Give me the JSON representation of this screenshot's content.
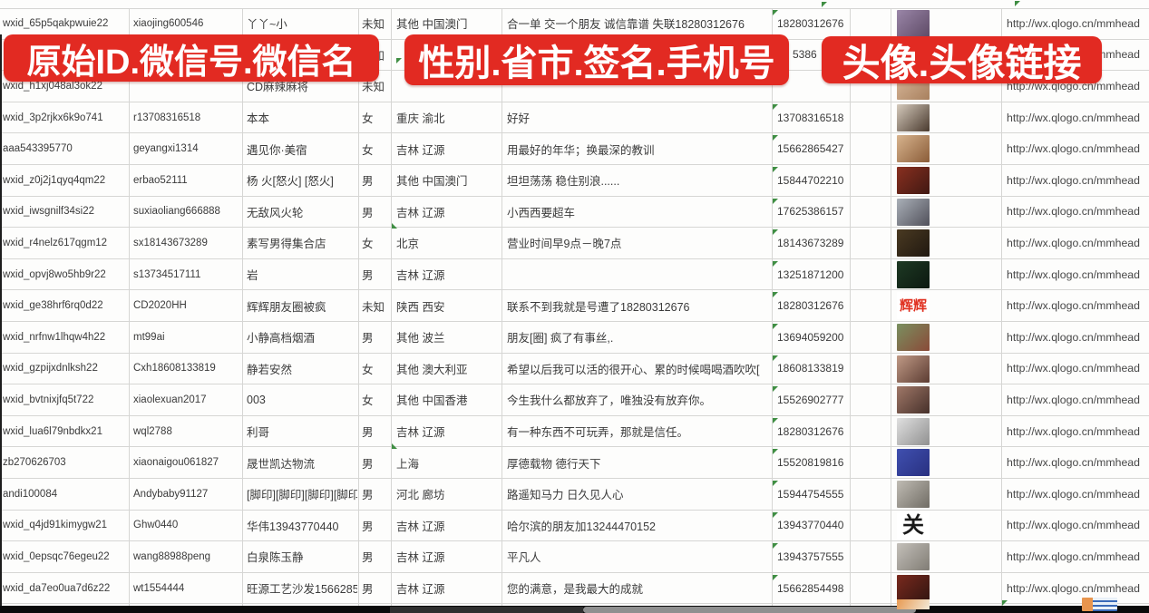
{
  "app": "spreadsheet-wechat-accounts",
  "accent_color": "#e22a22",
  "grid_color": "#d6d6d4",
  "banners": [
    {
      "text": "原始ID.微信号.微信名"
    },
    {
      "text": "性别.省市.签名.手机号"
    },
    {
      "text": "头像.头像链接"
    }
  ],
  "columns": [
    "原始ID",
    "微信号",
    "微信名",
    "性别",
    "省市",
    "签名",
    "手机号",
    "头像",
    "头像链接"
  ],
  "url": "http://wx.qlogo.cn/mmhead",
  "rows": [
    {
      "wxid": "wxid_65p5qakpwuie22",
      "account": "xiaojing600546",
      "nickname": "丫丫~小",
      "gender": "未知",
      "region": "其他 中国澳门",
      "signature": "合一单 交一个朋友 诚信靠谱 失联18280312676",
      "phone": "18280312676",
      "has_url": true,
      "avatar": {
        "desc": "selfie-woman-purple",
        "c1": "#9a86a8",
        "c2": "#5e4a66"
      }
    },
    {
      "wxid": "",
      "account": "",
      "nickname": "",
      "gender": "未知",
      "region": "",
      "signature": "",
      "phone": "5386",
      "phone_indent": 17,
      "has_url": true,
      "avatar": {
        "desc": "hidden-behind-banner",
        "c1": "#b8a698",
        "c2": "#8a7a6c"
      }
    },
    {
      "wxid": "wxid_h1xj048al3ok22",
      "account": "",
      "nickname": "CD麻辣麻将",
      "gender": "未知",
      "region": "",
      "signature": "",
      "phone": "",
      "has_url": true,
      "avatar": {
        "desc": "portrait-tan",
        "c1": "#d8b89a",
        "c2": "#a8805e"
      }
    },
    {
      "wxid": "wxid_3p2rjkx6k9o741",
      "account": "r13708316518",
      "nickname": "本本",
      "gender": "女",
      "region": "重庆 渝北",
      "signature": "好好",
      "phone": "13708316518",
      "has_url": true,
      "avatar": {
        "desc": "woman-dark-hair",
        "c1": "#d5cabc",
        "c2": "#4a3a2e"
      }
    },
    {
      "wxid": "aaa543395770",
      "account": "geyangxi1314",
      "nickname": "遇见你·美宿",
      "gender": "女",
      "region": "吉林 辽源",
      "signature": "用最好的年华；换最深的教训",
      "phone": "15662865427",
      "has_url": true,
      "avatar": {
        "desc": "branches-tan",
        "c1": "#d8b48e",
        "c2": "#8a5c38"
      }
    },
    {
      "wxid": "wxid_z0j2j1qyq4qm22",
      "account": "erbao52111",
      "nickname": "杨 火[怒火] [怒火]",
      "gender": "男",
      "region": "其他 中国澳门",
      "signature": "坦坦荡荡 稳住别浪......",
      "phone": "15844702210",
      "has_url": true,
      "avatar": {
        "desc": "dark-red-figures",
        "c1": "#8a3020",
        "c2": "#401812"
      }
    },
    {
      "wxid": "wxid_iwsgnilf34si22",
      "account": "suxiaoliang666888",
      "nickname": "无敌风火轮",
      "gender": "男",
      "region": "吉林 辽源",
      "signature": "小西西要超车",
      "phone": "17625386157",
      "has_url": true,
      "avatar": {
        "desc": "boy-in-car",
        "c1": "#aab0b8",
        "c2": "#50505a"
      }
    },
    {
      "wxid": "wxid_r4nelz617qgm12",
      "account": "sx18143673289",
      "nickname": "素写男得集合店",
      "gender": "女",
      "region": "北京",
      "signature": "营业时间早9点－晚7点",
      "phone": "18143673289",
      "has_url": true,
      "avatar": {
        "desc": "dark-storefront",
        "c1": "#4a3a22",
        "c2": "#201810"
      }
    },
    {
      "wxid": "wxid_opvj8wo5hb9r22",
      "account": "s13734517111",
      "nickname": "岩",
      "gender": "男",
      "region": "吉林 辽源",
      "signature": "",
      "phone": "13251871200",
      "has_url": true,
      "avatar": {
        "desc": "dark-green-road",
        "c1": "#1e3a24",
        "c2": "#0c1810"
      }
    },
    {
      "wxid": "wxid_ge38hrf6rq0d22",
      "account": "CD2020HH",
      "nickname": "辉辉朋友圈被疯",
      "gender": "未知",
      "region": "陕西 西安",
      "signature": "联系不到我就是号遭了18280312676",
      "phone": "18280312676",
      "has_url": true,
      "avatar": {
        "desc": "white-red-text",
        "text": "辉辉",
        "text_color": "#e03020",
        "c1": "#ffffff",
        "c2": "#f4f0ec"
      }
    },
    {
      "wxid": "wxid_nrfnw1lhqw4h22",
      "account": "mt99ai",
      "nickname": "小静高档烟酒",
      "gender": "男",
      "region": "其他 波兰",
      "signature": "朋友[圈] 疯了有事丝,.",
      "phone": "13694059200",
      "has_url": true,
      "avatar": {
        "desc": "woman-sunglasses-outdoor",
        "c1": "#7a9060",
        "c2": "#8a4a38"
      }
    },
    {
      "wxid": "wxid_gzpijxdnlksh22",
      "account": "Cxh18608133819",
      "nickname": "静若安然",
      "gender": "女",
      "region": "其他 澳大利亚",
      "signature": "希望以后我可以活的很开心、累的时候喝喝酒吹吹[",
      "phone": "18608133819",
      "has_url": true,
      "avatar": {
        "desc": "selfie-woman",
        "c1": "#c09a86",
        "c2": "#5c3c32"
      }
    },
    {
      "wxid": "wxid_bvtnixjfq5t722",
      "account": "xiaolexuan2017",
      "nickname": "003",
      "gender": "女",
      "region": "其他 中国香港",
      "signature": "今生我什么都放弃了，唯独没有放弃你。",
      "phone": "15526902777",
      "has_url": true,
      "avatar": {
        "desc": "selfie-woman-dark",
        "c1": "#a07868",
        "c2": "#46302a"
      }
    },
    {
      "wxid": "wxid_lua6l79nbdkx21",
      "account": "wql2788",
      "nickname": "利哥",
      "gender": "男",
      "region": "吉林 辽源",
      "signature": "有一种东西不可玩弄，那就是信任。",
      "phone": "18280312676",
      "has_url": true,
      "avatar": {
        "desc": "man-white-cap",
        "c1": "#e0e0e0",
        "c2": "#909090"
      }
    },
    {
      "wxid": "zb270626703",
      "account": "xiaonaigou061827",
      "nickname": "晟世凯达物流",
      "gender": "男",
      "region": "上海",
      "signature": "厚德载物 德行天下",
      "phone": "15520819816",
      "has_url": true,
      "avatar": {
        "desc": "blue-qr-code",
        "c1": "#4050b0",
        "c2": "#283080"
      }
    },
    {
      "wxid": "andi100084",
      "account": "Andybaby91127",
      "nickname": "[脚印][脚印][脚印][脚印]",
      "gender": "男",
      "region": "河北 廊坊",
      "signature": "路遥知马力 日久见人心",
      "phone": "15944754555",
      "has_url": true,
      "avatar": {
        "desc": "gray-photo",
        "c1": "#c0bcb4",
        "c2": "#706c64"
      }
    },
    {
      "wxid": "wxid_q4jd91kimygw21",
      "account": "Ghw0440",
      "nickname": "华伟13943770440",
      "gender": "男",
      "region": "吉林 辽源",
      "signature": "哈尔滨的朋友加13244470152",
      "phone": "13943770440",
      "has_url": true,
      "avatar": {
        "desc": "white-calligraphy",
        "text": "关",
        "text_color": "#1a1a1a",
        "c1": "#ffffff",
        "c2": "#f6f6f4"
      }
    },
    {
      "wxid": "wxid_0epsqc76egeu22",
      "account": "wang88988peng",
      "nickname": "白泉陈玉静",
      "gender": "男",
      "region": "吉林 辽源",
      "signature": "平凡人",
      "phone": "13943757555",
      "has_url": true,
      "avatar": {
        "desc": "gray-person",
        "c1": "#c4c0ba",
        "c2": "#807c74"
      }
    },
    {
      "wxid": "wxid_da7eo0ua7d6z22",
      "account": "wt1554444",
      "nickname": "旺源工艺沙发15662854",
      "gender": "男",
      "region": "吉林 辽源",
      "signature": "您的满意，是我最大的成就",
      "phone": "15662854498",
      "has_url": true,
      "avatar": {
        "desc": "dark-red-china-jiayou",
        "c1": "#7a2a1e",
        "c2": "#301410"
      }
    }
  ],
  "partial_row": {
    "avatar": {
      "desc": "orange-cartoon-partial",
      "c1": "#e89a52",
      "c2": "#f2ead8"
    },
    "sticker": {
      "desc": "small-watermark-avatar",
      "c1": "#e8954e",
      "c2": "#e8f0f8",
      "accent": "#3a6ab8"
    }
  },
  "scrubber": {
    "bar_color": "#0a0a0a",
    "mid_color": "#2f2f2f",
    "pill_color": "#8f8f8f"
  },
  "indicator_color": "#3f8e43"
}
